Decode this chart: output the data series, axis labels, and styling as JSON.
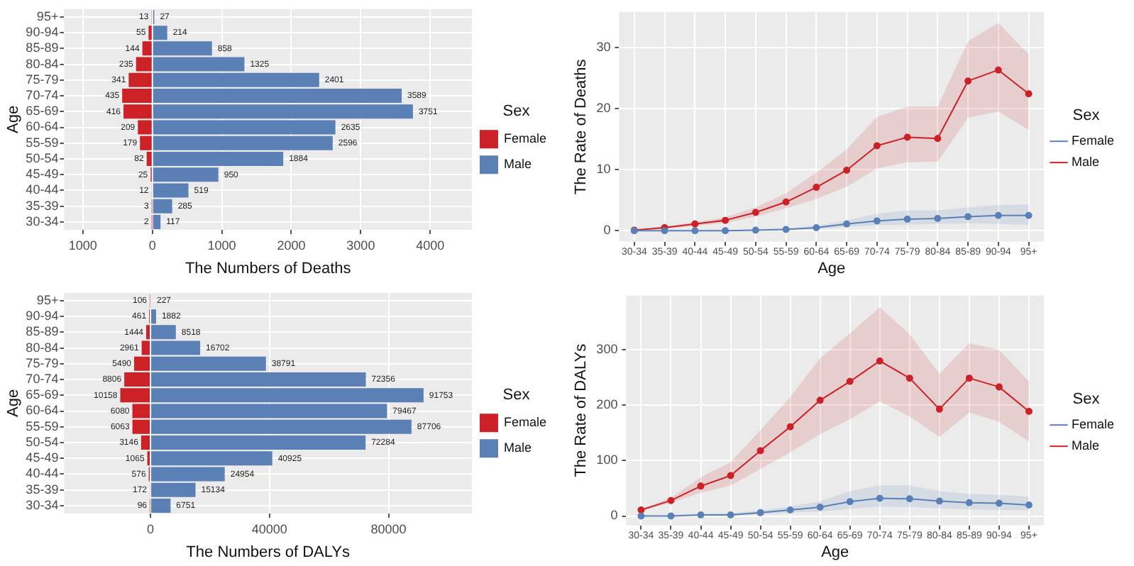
{
  "chart_data": [
    {
      "type": "bar",
      "orientation": "horizontal",
      "xlabel": "The Numbers of Deaths",
      "ylabel": "Age",
      "legend_title": "Sex",
      "legend": "right",
      "grid": true,
      "categories": [
        "95+",
        "90-94",
        "85-89",
        "80-84",
        "75-79",
        "70-74",
        "65-69",
        "60-64",
        "55-59",
        "50-54",
        "45-49",
        "40-44",
        "35-39",
        "30-34"
      ],
      "xlim": [
        -1270,
        4600
      ],
      "xticks": [
        {
          "value": -1000,
          "label": "1000"
        },
        0,
        1000,
        2000,
        3000,
        4000
      ],
      "series": [
        {
          "name": "Female",
          "color": "#cb2127",
          "values": [
            13,
            55,
            144,
            235,
            341,
            435,
            416,
            209,
            179,
            82,
            25,
            12,
            3,
            2
          ],
          "base": [
            -13,
            -55,
            -144,
            -235,
            -341,
            -435,
            -416,
            -209,
            -179,
            -82,
            -25,
            -12,
            -3,
            -2
          ],
          "value_labels": [
            "13",
            "55",
            "144",
            "235",
            "341",
            "435",
            "416",
            "209",
            "179",
            "82",
            "25",
            "12",
            "3",
            "2"
          ]
        },
        {
          "name": "Male",
          "color": "#5a80b6",
          "values": [
            27,
            214,
            858,
            1325,
            2401,
            3589,
            3751,
            2635,
            2596,
            1884,
            950,
            519,
            285,
            117
          ],
          "value_labels": [
            "27",
            "214",
            "858",
            "1325",
            "2401",
            "3589",
            "3751",
            "2635",
            "2596",
            "1884",
            "950",
            "519",
            "285",
            "117"
          ]
        }
      ]
    },
    {
      "type": "line",
      "xlabel": "Age",
      "ylabel": "The Rate of Deaths",
      "legend_title": "Sex",
      "legend": "right",
      "grid": true,
      "marker": "circle",
      "line_style": "solid",
      "categories": [
        "30-34",
        "35-39",
        "40-44",
        "45-49",
        "50-54",
        "55-59",
        "60-64",
        "65-69",
        "70-74",
        "75-79",
        "80-84",
        "85-89",
        "90-94",
        "95+"
      ],
      "ylim": [
        -1.8,
        35.8
      ],
      "yticks": [
        0,
        10,
        20,
        30
      ],
      "series": [
        {
          "name": "Female",
          "color": "#5a80b6",
          "values": [
            0,
            0,
            0,
            0,
            0.1,
            0.2,
            0.5,
            1.1,
            1.6,
            1.9,
            2.0,
            2.3,
            2.5,
            2.5
          ],
          "lower": [
            0,
            0,
            0,
            0,
            0,
            0.1,
            0.3,
            0.6,
            0.9,
            1.0,
            1.1,
            1.2,
            1.1,
            1.0
          ],
          "upper": [
            0,
            0.1,
            0.1,
            0.1,
            0.2,
            0.4,
            0.8,
            1.7,
            2.8,
            3.3,
            3.3,
            3.8,
            4.2,
            4.3
          ]
        },
        {
          "name": "Male",
          "color": "#cb2127",
          "values": [
            0.1,
            0.5,
            1.1,
            1.7,
            3.0,
            4.7,
            7.1,
            9.9,
            13.9,
            15.3,
            15.1,
            24.5,
            26.3,
            22.4
          ],
          "lower": [
            0,
            0.3,
            0.8,
            1.3,
            2.3,
            3.7,
            5.2,
            7.2,
            10.2,
            11.2,
            11.3,
            18.5,
            19.5,
            16.5
          ],
          "upper": [
            0.2,
            0.7,
            1.4,
            2.2,
            3.8,
            6.1,
            9.5,
            13.3,
            18.6,
            20.3,
            20.3,
            31,
            34,
            28.8
          ]
        }
      ]
    },
    {
      "type": "bar",
      "orientation": "horizontal",
      "xlabel": "The Numbers of DALYs",
      "ylabel": "Age",
      "legend_title": "Sex",
      "legend": "right",
      "grid": true,
      "categories": [
        "95+",
        "90-94",
        "85-89",
        "80-84",
        "75-79",
        "70-74",
        "65-69",
        "60-64",
        "55-59",
        "50-54",
        "45-49",
        "40-44",
        "35-39",
        "30-34"
      ],
      "xlim": [
        -29000,
        108000
      ],
      "xticks": [
        0,
        40000,
        80000
      ],
      "series": [
        {
          "name": "Female",
          "color": "#cb2127",
          "values": [
            106,
            461,
            1444,
            2961,
            5490,
            8806,
            10158,
            6080,
            6063,
            3146,
            1065,
            576,
            172,
            96
          ],
          "base": [
            -106,
            -461,
            -1444,
            -2961,
            -5490,
            -8806,
            -10158,
            -6080,
            -6063,
            -3146,
            -1065,
            -576,
            -172,
            -96
          ],
          "value_labels": [
            "106",
            "461",
            "1444",
            "2961",
            "5490",
            "8806",
            "10158",
            "6080",
            "6063",
            "3146",
            "1065",
            "576",
            "172",
            "96"
          ]
        },
        {
          "name": "Male",
          "color": "#5a80b6",
          "values": [
            227,
            1882,
            8518,
            16702,
            38791,
            72356,
            91753,
            79467,
            87706,
            72284,
            40925,
            24954,
            15134,
            6751
          ],
          "value_labels": [
            "227",
            "1882",
            "8518",
            "16702",
            "38791",
            "72356",
            "91753",
            "79467",
            "87706",
            "72284",
            "40925",
            "24954",
            "15134",
            "6751"
          ]
        }
      ]
    },
    {
      "type": "line",
      "xlabel": "Age",
      "ylabel": "The Rate of DALYs",
      "legend_title": "Sex",
      "legend": "right",
      "grid": true,
      "marker": "circle",
      "line_style": "solid",
      "categories": [
        "30-34",
        "35-39",
        "40-44",
        "45-49",
        "50-54",
        "55-59",
        "60-64",
        "65-69",
        "70-74",
        "75-79",
        "80-84",
        "85-89",
        "90-94",
        "95+"
      ],
      "ylim": [
        -17,
        398
      ],
      "yticks": [
        0,
        100,
        200,
        300
      ],
      "series": [
        {
          "name": "Female",
          "color": "#5a80b6",
          "values": [
            0,
            0,
            2,
            2,
            6,
            11,
            16,
            26,
            32,
            31,
            27,
            24,
            23,
            20
          ],
          "lower": [
            0,
            0,
            1,
            1,
            3,
            6,
            8,
            13,
            17,
            16,
            14,
            12,
            11,
            10
          ],
          "upper": [
            0,
            1,
            4,
            5,
            10,
            17,
            27,
            45,
            55,
            55,
            45,
            40,
            38,
            35
          ]
        },
        {
          "name": "Male",
          "color": "#cb2127",
          "values": [
            11,
            28,
            54,
            73,
            118,
            161,
            209,
            243,
            280,
            249,
            193,
            249,
            233,
            189
          ],
          "lower": [
            9,
            24,
            42,
            55,
            85,
            115,
            148,
            175,
            207,
            180,
            143,
            187,
            170,
            135
          ],
          "upper": [
            13,
            33,
            70,
            97,
            155,
            215,
            285,
            330,
            377,
            328,
            257,
            312,
            300,
            243
          ]
        }
      ]
    }
  ]
}
